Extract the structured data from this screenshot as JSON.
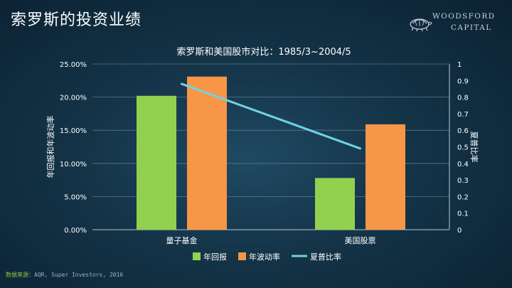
{
  "slide": {
    "title": "索罗斯的投资业绩",
    "logo": {
      "name": "woodsford-logo-icon",
      "line1": "WOODSFORD",
      "line2": "CAPITAL"
    },
    "source_label": "数据来源：",
    "source_text": "AQR, Super Investors, 2016"
  },
  "colors": {
    "annual_return": "#92d050",
    "volatility": "#f79646",
    "sharpe": "#6ed3e3",
    "axis_text": "#ffffff",
    "grid": "#5c7788"
  },
  "chart_data": {
    "type": "bar",
    "title": "索罗斯和美国股市对比：1985/3~2004/5",
    "categories": [
      "量子基金",
      "美国股票"
    ],
    "series": [
      {
        "name": "年回报",
        "type": "bar",
        "axis": "left",
        "values": [
          0.202,
          0.078
        ]
      },
      {
        "name": "年波动率",
        "type": "bar",
        "axis": "left",
        "values": [
          0.231,
          0.159
        ]
      },
      {
        "name": "夏普比率",
        "type": "line",
        "axis": "right",
        "values": [
          0.88,
          0.49
        ]
      }
    ],
    "y_left": {
      "label": "年回报和年波动率",
      "range": [
        0,
        0.25
      ],
      "ticks": [
        "0.00%",
        "5.00%",
        "10.00%",
        "15.00%",
        "20.00%",
        "25.00%"
      ]
    },
    "y_right": {
      "label": "夏普比率",
      "range": [
        0,
        1
      ],
      "ticks": [
        "0",
        "0.1",
        "0.2",
        "0.3",
        "0.4",
        "0.5",
        "0.6",
        "0.7",
        "0.8",
        "0.9",
        "1"
      ]
    },
    "grid": true,
    "legend_position": "bottom"
  }
}
